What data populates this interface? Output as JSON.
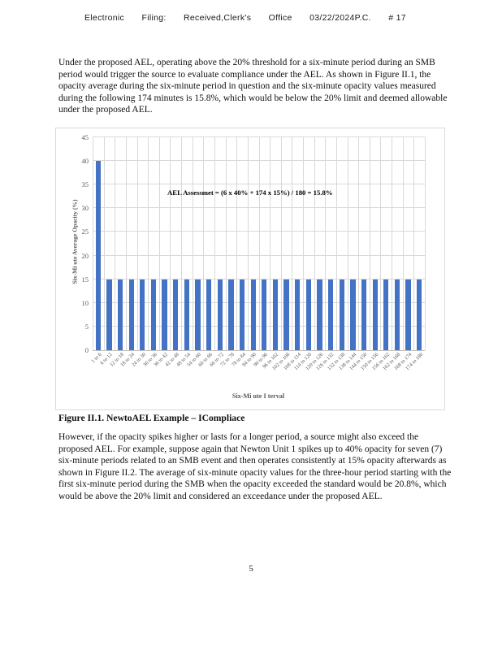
{
  "header": {
    "segments": [
      "Electronic",
      "Filing:",
      "Received,Clerk's",
      "Office",
      "03/22/2024P.C.",
      "# 17"
    ]
  },
  "paragraphs": {
    "p1": "Under the proposed AEL, operating above the 20% threshold for a six-minute period during an SMB period would trigger the source to evaluate compliance under the AEL.   As shown in Figure II.1, the opacity average during the six-minute period in question and the six-minute opacity values measured during the following 174 minutes is 15.8%, which would be below the 20% limit and deemed allowable under the proposed AEL.",
    "p2": "However, if the opacity spikes higher or lasts for a longer period, a source might also exceed the proposed AEL.  For example, suppose again that Newton Unit 1 spikes up to 40% opacity for seven (7) six-minute periods related to an SMB event and then operates consistently at 15% opacity afterwards as shown in Figure II.2.  The average of six-minute opacity values for the three-hour period starting with the first six-minute period during the SMB when the opacity exceeded the standard would be 20.8%, which would be above the 20% limit and considered an exceedance under the proposed AEL."
  },
  "figure_caption": "Figure II.1. NewtoAEL Example – ICompliace",
  "page_number": "5",
  "chart_data": {
    "type": "bar",
    "title": "",
    "categories": [
      "1 to 6",
      "6 to 12",
      "12 to 18",
      "18 to 24",
      "24 to 30",
      "30 to 36",
      "36 to 42",
      "42 to 48",
      "48 to 54",
      "54 to 60",
      "60 to 66",
      "66 to 72",
      "72 to 78",
      "78 to 84",
      "84 to 90",
      "90 to 96",
      "96 to 102",
      "102 to 108",
      "108 to 114",
      "114 to 120",
      "120 to 126",
      "126 to 132",
      "132 to 138",
      "138 to 144",
      "144 to 150",
      "150 to 156",
      "156 to 162",
      "162 to 168",
      "168 to 174",
      "174 to 180"
    ],
    "values": [
      40,
      15,
      15,
      15,
      15,
      15,
      15,
      15,
      15,
      15,
      15,
      15,
      15,
      15,
      15,
      15,
      15,
      15,
      15,
      15,
      15,
      15,
      15,
      15,
      15,
      15,
      15,
      15,
      15,
      15
    ],
    "ylabel": "Six-Mi ute Average Opacity (%)",
    "xlabel": "Six-Mi ute I terval",
    "ylim": [
      0,
      45
    ],
    "ytick_step": 5,
    "annotation": "AEL Assessmet = (6 x 40% + 174 x 15%) / 180 = 15.8%",
    "bar_color": "#4472C4",
    "grid": true,
    "legend_position": "none"
  }
}
